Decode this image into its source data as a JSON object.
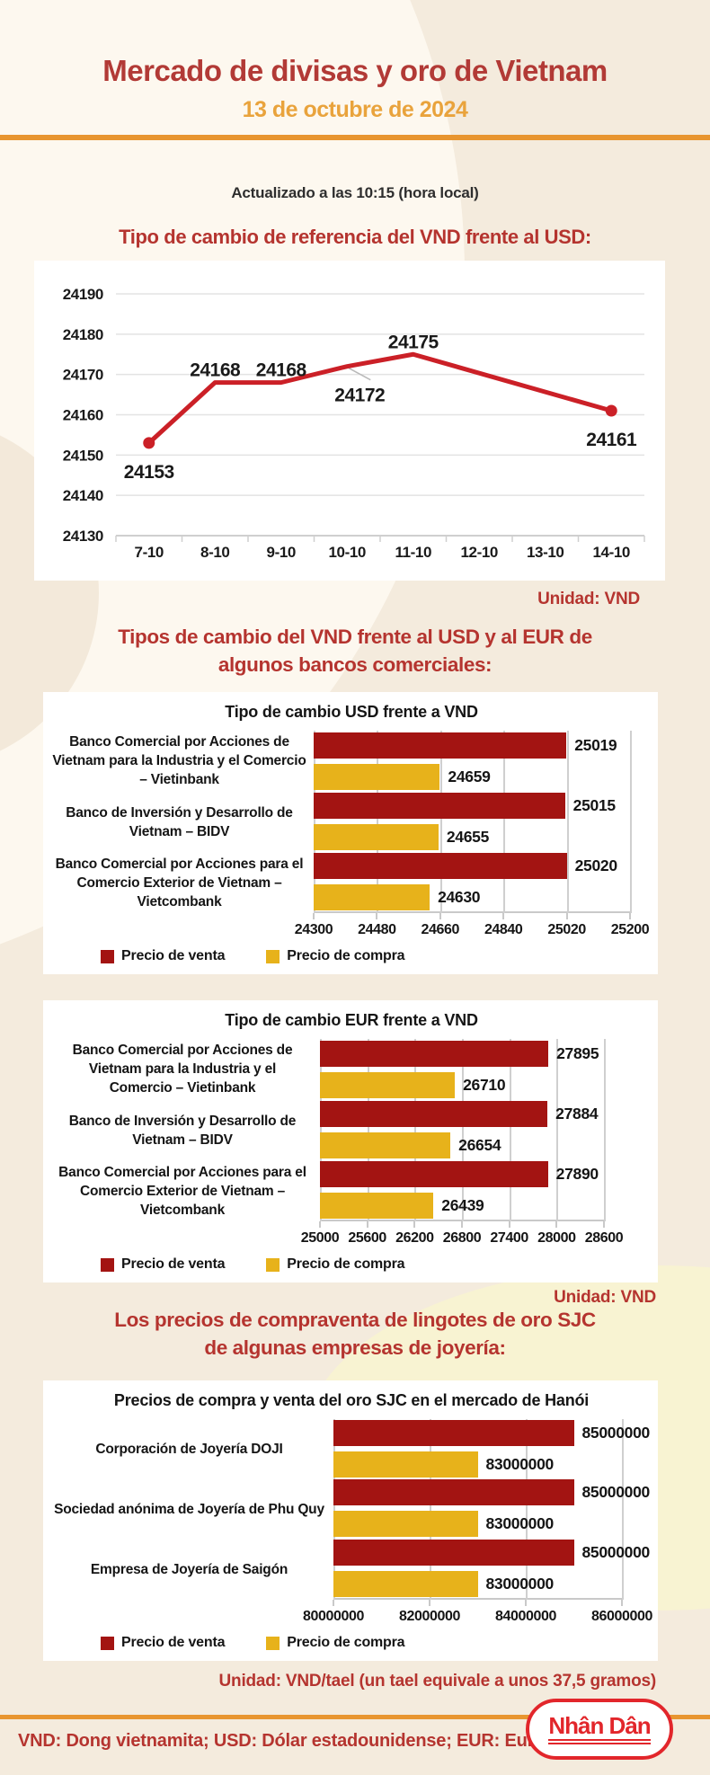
{
  "header": {
    "title": "Mercado de divisas y oro de Vietnam",
    "date": "13 de octubre de 2024",
    "updated": "Actualizado a las 10:15 (hora local)"
  },
  "sections": {
    "reference_rate": {
      "title": "Tipo de cambio de referencia del VND frente al USD:",
      "unit": "Unidad: VND"
    },
    "bank_rates": {
      "title": "Tipos de cambio del VND frente al USD y al EUR de algunos bancos comerciales:",
      "unit": "Unidad: VND"
    },
    "gold": {
      "title": "Los precios de compraventa de lingotes de oro SJC de algunas empresas de joyería:",
      "unit": "Unidad: VND/tael (un tael equivale a unos 37,5 gramos)"
    }
  },
  "footer": {
    "glossary": "VND: Dong vietnamita; USD: Dólar estadounidense; EUR: Euro",
    "logo_text": "Nhân Dân"
  },
  "colors": {
    "title_red": "#b23a36",
    "accent_orange": "#e9a33c",
    "divider_orange": "#e8952f",
    "line_red": "#cb2027",
    "bar_red": "#a31412",
    "bar_gold": "#e7b21b",
    "logo_red": "#e2262b",
    "panel_white": "#ffffff"
  },
  "chart_data": [
    {
      "type": "line",
      "title": "Tipo de cambio de referencia del VND frente al USD:",
      "unit": "VND",
      "x": [
        "7-10",
        "8-10",
        "9-10",
        "10-10",
        "11-10",
        "12-10",
        "13-10",
        "14-10"
      ],
      "values": [
        24153,
        24168,
        24168,
        24172,
        24175,
        null,
        null,
        24161
      ],
      "label_positions": [
        "below",
        "above",
        "above",
        "below",
        "above",
        null,
        null,
        "below"
      ],
      "ylim": [
        24130,
        24190
      ],
      "yticks": [
        24130,
        24140,
        24150,
        24160,
        24170,
        24180,
        24190
      ],
      "grid": true,
      "legend": "none",
      "line_color": "#cb2027"
    },
    {
      "type": "bar",
      "orientation": "horizontal",
      "title": "Tipo de cambio USD frente a VND",
      "categories": [
        [
          "Banco Comercial por Acciones de",
          "Vietnam para la Industria y el Comercio",
          "– Vietinbank"
        ],
        [
          "Banco de Inversión y Desarrollo de",
          "Vietnam – BIDV"
        ],
        [
          "Banco Comercial por Acciones para el",
          "Comercio Exterior de Vietnam –",
          "Vietcombank"
        ]
      ],
      "series": [
        {
          "name": "Precio de venta",
          "color": "#a31412",
          "values": [
            25019,
            25015,
            25020
          ]
        },
        {
          "name": "Precio de compra",
          "color": "#e7b21b",
          "values": [
            24659,
            24655,
            24630
          ]
        }
      ],
      "xlim": [
        24300,
        25200
      ],
      "xticks": [
        24300,
        24480,
        24660,
        24840,
        25020,
        25200
      ],
      "legend_position": "bottom-left"
    },
    {
      "type": "bar",
      "orientation": "horizontal",
      "title": "Tipo de cambio EUR frente a VND",
      "categories": [
        [
          "Banco Comercial por Acciones de",
          "Vietnam para la Industria y el",
          "Comercio – Vietinbank"
        ],
        [
          "Banco de Inversión y Desarrollo de",
          "Vietnam – BIDV"
        ],
        [
          "Banco Comercial por Acciones para el",
          "Comercio Exterior de Vietnam –",
          "Vietcombank"
        ]
      ],
      "series": [
        {
          "name": "Precio de venta",
          "color": "#a31412",
          "values": [
            27895,
            27884,
            27890
          ]
        },
        {
          "name": "Precio de compra",
          "color": "#e7b21b",
          "values": [
            26710,
            26654,
            26439
          ]
        }
      ],
      "xlim": [
        25000,
        28600
      ],
      "xticks": [
        25000,
        25600,
        26200,
        26800,
        27400,
        28000,
        28600
      ],
      "legend_position": "bottom-left"
    },
    {
      "type": "bar",
      "orientation": "horizontal",
      "title": "Precios de compra y venta del oro SJC en el mercado de Hanói",
      "categories": [
        [
          "Corporación de Joyería DOJI"
        ],
        [
          "Sociedad anónima de Joyería de Phu Quy"
        ],
        [
          "Empresa de Joyería de Saigón"
        ]
      ],
      "series": [
        {
          "name": "Precio de venta",
          "color": "#a31412",
          "values": [
            85000000,
            85000000,
            85000000
          ]
        },
        {
          "name": "Precio de compra",
          "color": "#e7b21b",
          "values": [
            83000000,
            83000000,
            83000000
          ]
        }
      ],
      "xlim": [
        80000000,
        86000000
      ],
      "xticks": [
        80000000,
        82000000,
        84000000,
        86000000
      ],
      "legend_position": "bottom-left"
    }
  ]
}
